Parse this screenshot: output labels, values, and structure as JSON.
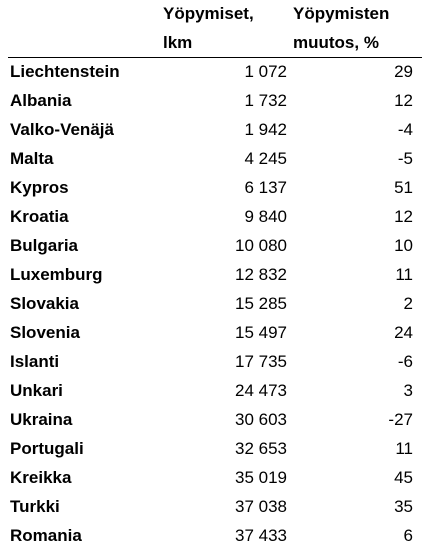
{
  "table": {
    "header": [
      [
        "Yöpymiset,",
        "lkm"
      ],
      [
        "Yöpymisten",
        "muutos, %"
      ]
    ],
    "rows": [
      [
        "Liechtenstein",
        "1 072",
        "29"
      ],
      [
        "Albania",
        "1 732",
        "12"
      ],
      [
        "Valko-Venäjä",
        "1 942",
        "-4"
      ],
      [
        "Malta",
        "4 245",
        "-5"
      ],
      [
        "Kypros",
        "6 137",
        "51"
      ],
      [
        "Kroatia",
        "9 840",
        "12"
      ],
      [
        "Bulgaria",
        "10 080",
        "10"
      ],
      [
        "Luxemburg",
        "12 832",
        "11"
      ],
      [
        "Slovakia",
        "15 285",
        "2"
      ],
      [
        "Slovenia",
        "15 497",
        "24"
      ],
      [
        "Islanti",
        "17 735",
        "-6"
      ],
      [
        "Unkari",
        "24 473",
        "3"
      ],
      [
        "Ukraina",
        "30 603",
        "-27"
      ],
      [
        "Portugali",
        "32 653",
        "11"
      ],
      [
        "Kreikka",
        "35 019",
        "45"
      ],
      [
        "Turkki",
        "37 038",
        "35"
      ],
      [
        "Romania",
        "37 433",
        "6"
      ]
    ]
  }
}
